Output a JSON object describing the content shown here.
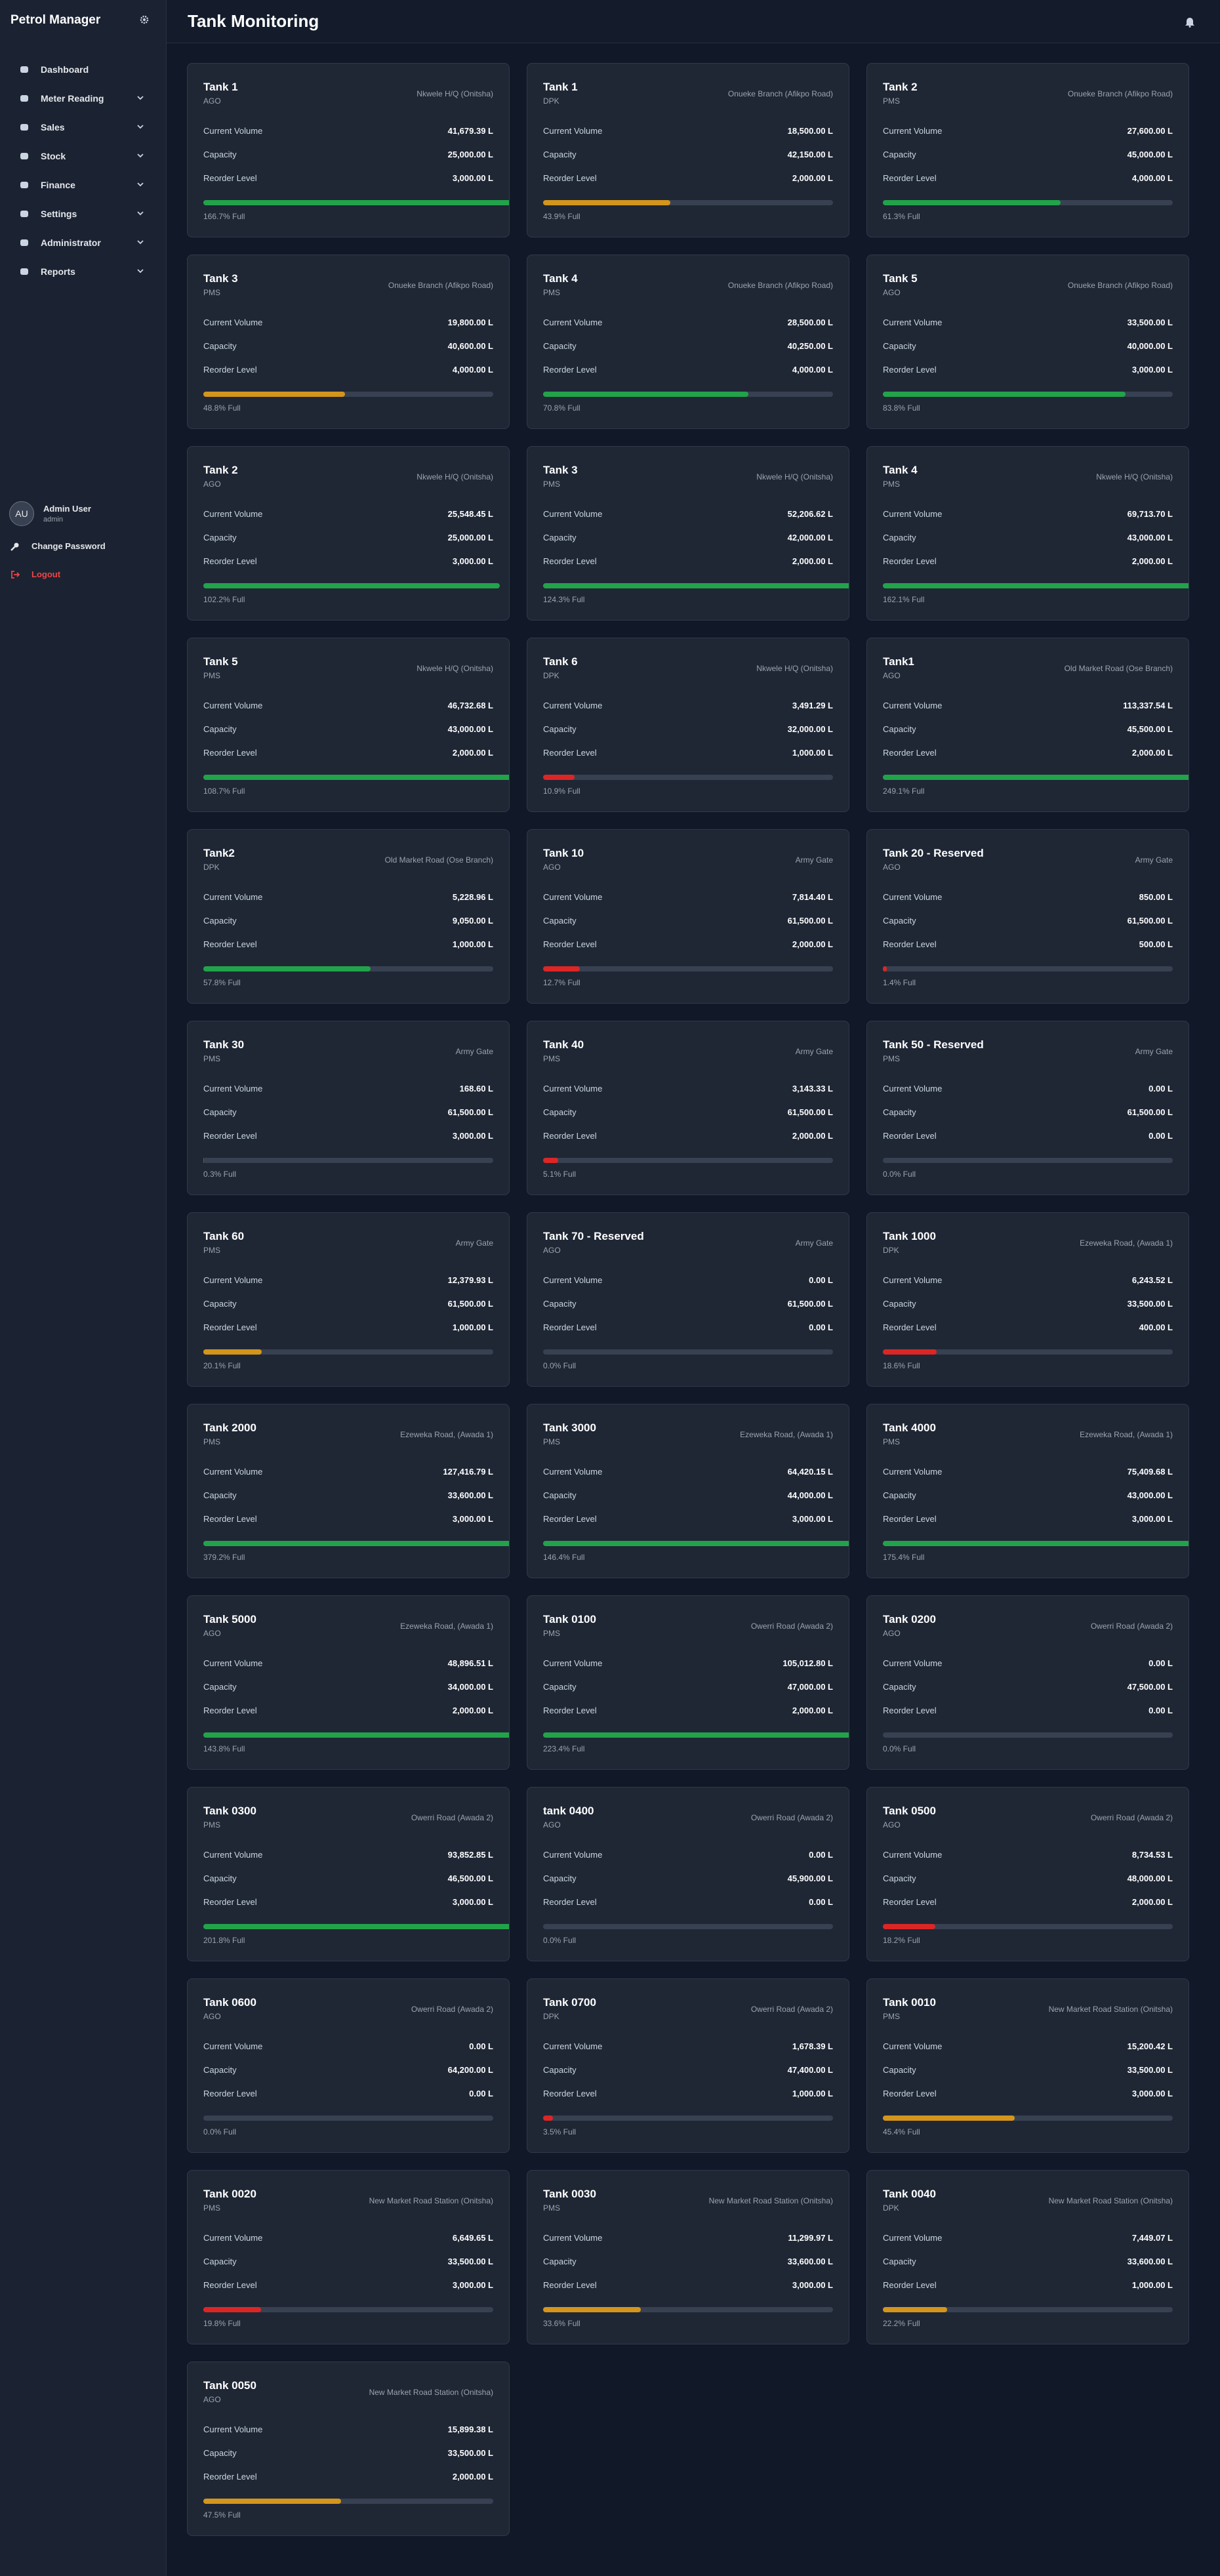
{
  "sidebar": {
    "brand": "Petrol Manager",
    "menu": [
      "Dashboard",
      "Meter Reading",
      "Sales",
      "Stock",
      "Finance",
      "Settings",
      "Administrator",
      "Reports"
    ],
    "avatar": "AU",
    "user_name": "Admin User",
    "user_role": "admin",
    "change_password": "Change Password",
    "logout": "Logout"
  },
  "header": {
    "title": "Tank Monitoring"
  },
  "labels": {
    "volume": "Current Volume",
    "capacity": "Capacity",
    "reorder": "Reorder Level"
  },
  "tanks": [
    {
      "name": "Tank 1",
      "product": "AGO",
      "branch": "Nkwele H/Q (Onitsha)",
      "volume": "41,679.39 L",
      "capacity": "25,000.00 L",
      "reorder": "3,000.00 L",
      "fill_percent": 166.7,
      "fill_label": "166.7% Full",
      "color": "#22a34a"
    },
    {
      "name": "Tank 1",
      "product": "DPK",
      "branch": "Onueke Branch (Afikpo Road)",
      "volume": "18,500.00 L",
      "capacity": "42,150.00 L",
      "reorder": "2,000.00 L",
      "fill_percent": 43.9,
      "fill_label": "43.9% Full",
      "color": "#d4951c"
    },
    {
      "name": "Tank 2",
      "product": "PMS",
      "branch": "Onueke Branch (Afikpo Road)",
      "volume": "27,600.00 L",
      "capacity": "45,000.00 L",
      "reorder": "4,000.00 L",
      "fill_percent": 61.3,
      "fill_label": "61.3% Full",
      "color": "#22a34a"
    },
    {
      "name": "Tank 3",
      "product": "PMS",
      "branch": "Onueke Branch (Afikpo Road)",
      "volume": "19,800.00 L",
      "capacity": "40,600.00 L",
      "reorder": "4,000.00 L",
      "fill_percent": 48.8,
      "fill_label": "48.8% Full",
      "color": "#d4951c"
    },
    {
      "name": "Tank 4",
      "product": "PMS",
      "branch": "Onueke Branch (Afikpo Road)",
      "volume": "28,500.00 L",
      "capacity": "40,250.00 L",
      "reorder": "4,000.00 L",
      "fill_percent": 70.8,
      "fill_label": "70.8% Full",
      "color": "#22a34a"
    },
    {
      "name": "Tank 5",
      "product": "AGO",
      "branch": "Onueke Branch (Afikpo Road)",
      "volume": "33,500.00 L",
      "capacity": "40,000.00 L",
      "reorder": "3,000.00 L",
      "fill_percent": 83.8,
      "fill_label": "83.8% Full",
      "color": "#22a34a"
    },
    {
      "name": "Tank 2",
      "product": "AGO",
      "branch": "Nkwele H/Q (Onitsha)",
      "volume": "25,548.45 L",
      "capacity": "25,000.00 L",
      "reorder": "3,000.00 L",
      "fill_percent": 102.2,
      "fill_label": "102.2% Full",
      "color": "#22a34a"
    },
    {
      "name": "Tank 3",
      "product": "PMS",
      "branch": "Nkwele H/Q (Onitsha)",
      "volume": "52,206.62 L",
      "capacity": "42,000.00 L",
      "reorder": "2,000.00 L",
      "fill_percent": 124.3,
      "fill_label": "124.3% Full",
      "color": "#22a34a"
    },
    {
      "name": "Tank 4",
      "product": "PMS",
      "branch": "Nkwele H/Q (Onitsha)",
      "volume": "69,713.70 L",
      "capacity": "43,000.00 L",
      "reorder": "2,000.00 L",
      "fill_percent": 162.1,
      "fill_label": "162.1% Full",
      "color": "#22a34a"
    },
    {
      "name": "Tank 5",
      "product": "PMS",
      "branch": "Nkwele H/Q (Onitsha)",
      "volume": "46,732.68 L",
      "capacity": "43,000.00 L",
      "reorder": "2,000.00 L",
      "fill_percent": 108.7,
      "fill_label": "108.7% Full",
      "color": "#22a34a"
    },
    {
      "name": "Tank 6",
      "product": "DPK",
      "branch": "Nkwele H/Q (Onitsha)",
      "volume": "3,491.29 L",
      "capacity": "32,000.00 L",
      "reorder": "1,000.00 L",
      "fill_percent": 10.9,
      "fill_label": "10.9% Full",
      "color": "#dc2626"
    },
    {
      "name": "Tank1",
      "product": "AGO",
      "branch": "Old Market Road (Ose Branch)",
      "volume": "113,337.54 L",
      "capacity": "45,500.00 L",
      "reorder": "2,000.00 L",
      "fill_percent": 249.1,
      "fill_label": "249.1% Full",
      "color": "#22a34a"
    },
    {
      "name": "Tank2",
      "product": "DPK",
      "branch": "Old Market Road (Ose Branch)",
      "volume": "5,228.96 L",
      "capacity": "9,050.00 L",
      "reorder": "1,000.00 L",
      "fill_percent": 57.8,
      "fill_label": "57.8% Full",
      "color": "#22a34a"
    },
    {
      "name": "Tank 10",
      "product": "AGO",
      "branch": "Army Gate",
      "volume": "7,814.40 L",
      "capacity": "61,500.00 L",
      "reorder": "2,000.00 L",
      "fill_percent": 12.7,
      "fill_label": "12.7% Full",
      "color": "#dc2626"
    },
    {
      "name": "Tank 20 - Reserved",
      "product": "AGO",
      "branch": "Army Gate",
      "volume": "850.00 L",
      "capacity": "61,500.00 L",
      "reorder": "500.00 L",
      "fill_percent": 1.4,
      "fill_label": "1.4% Full",
      "color": "#dc2626"
    },
    {
      "name": "Tank 30",
      "product": "PMS",
      "branch": "Army Gate",
      "volume": "168.60 L",
      "capacity": "61,500.00 L",
      "reorder": "3,000.00 L",
      "fill_percent": 0.3,
      "fill_label": "0.3% Full",
      "color": "#dc2626"
    },
    {
      "name": "Tank 40",
      "product": "PMS",
      "branch": "Army Gate",
      "volume": "3,143.33 L",
      "capacity": "61,500.00 L",
      "reorder": "2,000.00 L",
      "fill_percent": 5.1,
      "fill_label": "5.1% Full",
      "color": "#dc2626"
    },
    {
      "name": "Tank 50 - Reserved",
      "product": "PMS",
      "branch": "Army Gate",
      "volume": "0.00 L",
      "capacity": "61,500.00 L",
      "reorder": "0.00 L",
      "fill_percent": 0.0,
      "fill_label": "0.0% Full",
      "color": "#dc2626"
    },
    {
      "name": "Tank 60",
      "product": "PMS",
      "branch": "Army Gate",
      "volume": "12,379.93 L",
      "capacity": "61,500.00 L",
      "reorder": "1,000.00 L",
      "fill_percent": 20.1,
      "fill_label": "20.1% Full",
      "color": "#d4951c"
    },
    {
      "name": "Tank 70 - Reserved",
      "product": "AGO",
      "branch": "Army Gate",
      "volume": "0.00 L",
      "capacity": "61,500.00 L",
      "reorder": "0.00 L",
      "fill_percent": 0.0,
      "fill_label": "0.0% Full",
      "color": "#dc2626"
    },
    {
      "name": "Tank 1000",
      "product": "DPK",
      "branch": "Ezeweka Road, (Awada 1)",
      "volume": "6,243.52 L",
      "capacity": "33,500.00 L",
      "reorder": "400.00 L",
      "fill_percent": 18.6,
      "fill_label": "18.6% Full",
      "color": "#dc2626"
    },
    {
      "name": "Tank 2000",
      "product": "PMS",
      "branch": "Ezeweka Road, (Awada 1)",
      "volume": "127,416.79 L",
      "capacity": "33,600.00 L",
      "reorder": "3,000.00 L",
      "fill_percent": 379.2,
      "fill_label": "379.2% Full",
      "color": "#22a34a"
    },
    {
      "name": "Tank 3000",
      "product": "PMS",
      "branch": "Ezeweka Road, (Awada 1)",
      "volume": "64,420.15 L",
      "capacity": "44,000.00 L",
      "reorder": "3,000.00 L",
      "fill_percent": 146.4,
      "fill_label": "146.4% Full",
      "color": "#22a34a"
    },
    {
      "name": "Tank 4000",
      "product": "PMS",
      "branch": "Ezeweka Road, (Awada 1)",
      "volume": "75,409.68 L",
      "capacity": "43,000.00 L",
      "reorder": "3,000.00 L",
      "fill_percent": 175.4,
      "fill_label": "175.4% Full",
      "color": "#22a34a"
    },
    {
      "name": "Tank 5000",
      "product": "AGO",
      "branch": "Ezeweka Road, (Awada 1)",
      "volume": "48,896.51 L",
      "capacity": "34,000.00 L",
      "reorder": "2,000.00 L",
      "fill_percent": 143.8,
      "fill_label": "143.8% Full",
      "color": "#22a34a"
    },
    {
      "name": "Tank 0100",
      "product": "PMS",
      "branch": "Owerri Road (Awada 2)",
      "volume": "105,012.80 L",
      "capacity": "47,000.00 L",
      "reorder": "2,000.00 L",
      "fill_percent": 223.4,
      "fill_label": "223.4% Full",
      "color": "#22a34a"
    },
    {
      "name": "Tank 0200",
      "product": "AGO",
      "branch": "Owerri Road (Awada 2)",
      "volume": "0.00 L",
      "capacity": "47,500.00 L",
      "reorder": "0.00 L",
      "fill_percent": 0.0,
      "fill_label": "0.0% Full",
      "color": "#dc2626"
    },
    {
      "name": "Tank 0300",
      "product": "PMS",
      "branch": "Owerri Road (Awada 2)",
      "volume": "93,852.85 L",
      "capacity": "46,500.00 L",
      "reorder": "3,000.00 L",
      "fill_percent": 201.8,
      "fill_label": "201.8% Full",
      "color": "#22a34a"
    },
    {
      "name": "tank 0400",
      "product": "AGO",
      "branch": "Owerri Road (Awada 2)",
      "volume": "0.00 L",
      "capacity": "45,900.00 L",
      "reorder": "0.00 L",
      "fill_percent": 0.0,
      "fill_label": "0.0% Full",
      "color": "#dc2626"
    },
    {
      "name": "Tank 0500",
      "product": "AGO",
      "branch": "Owerri Road (Awada 2)",
      "volume": "8,734.53 L",
      "capacity": "48,000.00 L",
      "reorder": "2,000.00 L",
      "fill_percent": 18.2,
      "fill_label": "18.2% Full",
      "color": "#dc2626"
    },
    {
      "name": "Tank 0600",
      "product": "AGO",
      "branch": "Owerri Road (Awada 2)",
      "volume": "0.00 L",
      "capacity": "64,200.00 L",
      "reorder": "0.00 L",
      "fill_percent": 0.0,
      "fill_label": "0.0% Full",
      "color": "#dc2626"
    },
    {
      "name": "Tank 0700",
      "product": "DPK",
      "branch": "Owerri Road (Awada 2)",
      "volume": "1,678.39 L",
      "capacity": "47,400.00 L",
      "reorder": "1,000.00 L",
      "fill_percent": 3.5,
      "fill_label": "3.5% Full",
      "color": "#dc2626"
    },
    {
      "name": "Tank 0010",
      "product": "PMS",
      "branch": "New Market Road Station (Onitsha)",
      "volume": "15,200.42 L",
      "capacity": "33,500.00 L",
      "reorder": "3,000.00 L",
      "fill_percent": 45.4,
      "fill_label": "45.4% Full",
      "color": "#d4951c"
    },
    {
      "name": "Tank 0020",
      "product": "PMS",
      "branch": "New Market Road Station (Onitsha)",
      "volume": "6,649.65 L",
      "capacity": "33,500.00 L",
      "reorder": "3,000.00 L",
      "fill_percent": 19.8,
      "fill_label": "19.8% Full",
      "color": "#dc2626"
    },
    {
      "name": "Tank 0030",
      "product": "PMS",
      "branch": "New Market Road Station (Onitsha)",
      "volume": "11,299.97 L",
      "capacity": "33,600.00 L",
      "reorder": "3,000.00 L",
      "fill_percent": 33.6,
      "fill_label": "33.6% Full",
      "color": "#d4951c"
    },
    {
      "name": "Tank 0040",
      "product": "DPK",
      "branch": "New Market Road Station (Onitsha)",
      "volume": "7,449.07 L",
      "capacity": "33,600.00 L",
      "reorder": "1,000.00 L",
      "fill_percent": 22.2,
      "fill_label": "22.2% Full",
      "color": "#d4951c"
    },
    {
      "name": "Tank 0050",
      "product": "AGO",
      "branch": "New Market Road Station (Onitsha)",
      "volume": "15,899.38 L",
      "capacity": "33,500.00 L",
      "reorder": "2,000.00 L",
      "fill_percent": 47.5,
      "fill_label": "47.5% Full",
      "color": "#d4951c"
    }
  ]
}
